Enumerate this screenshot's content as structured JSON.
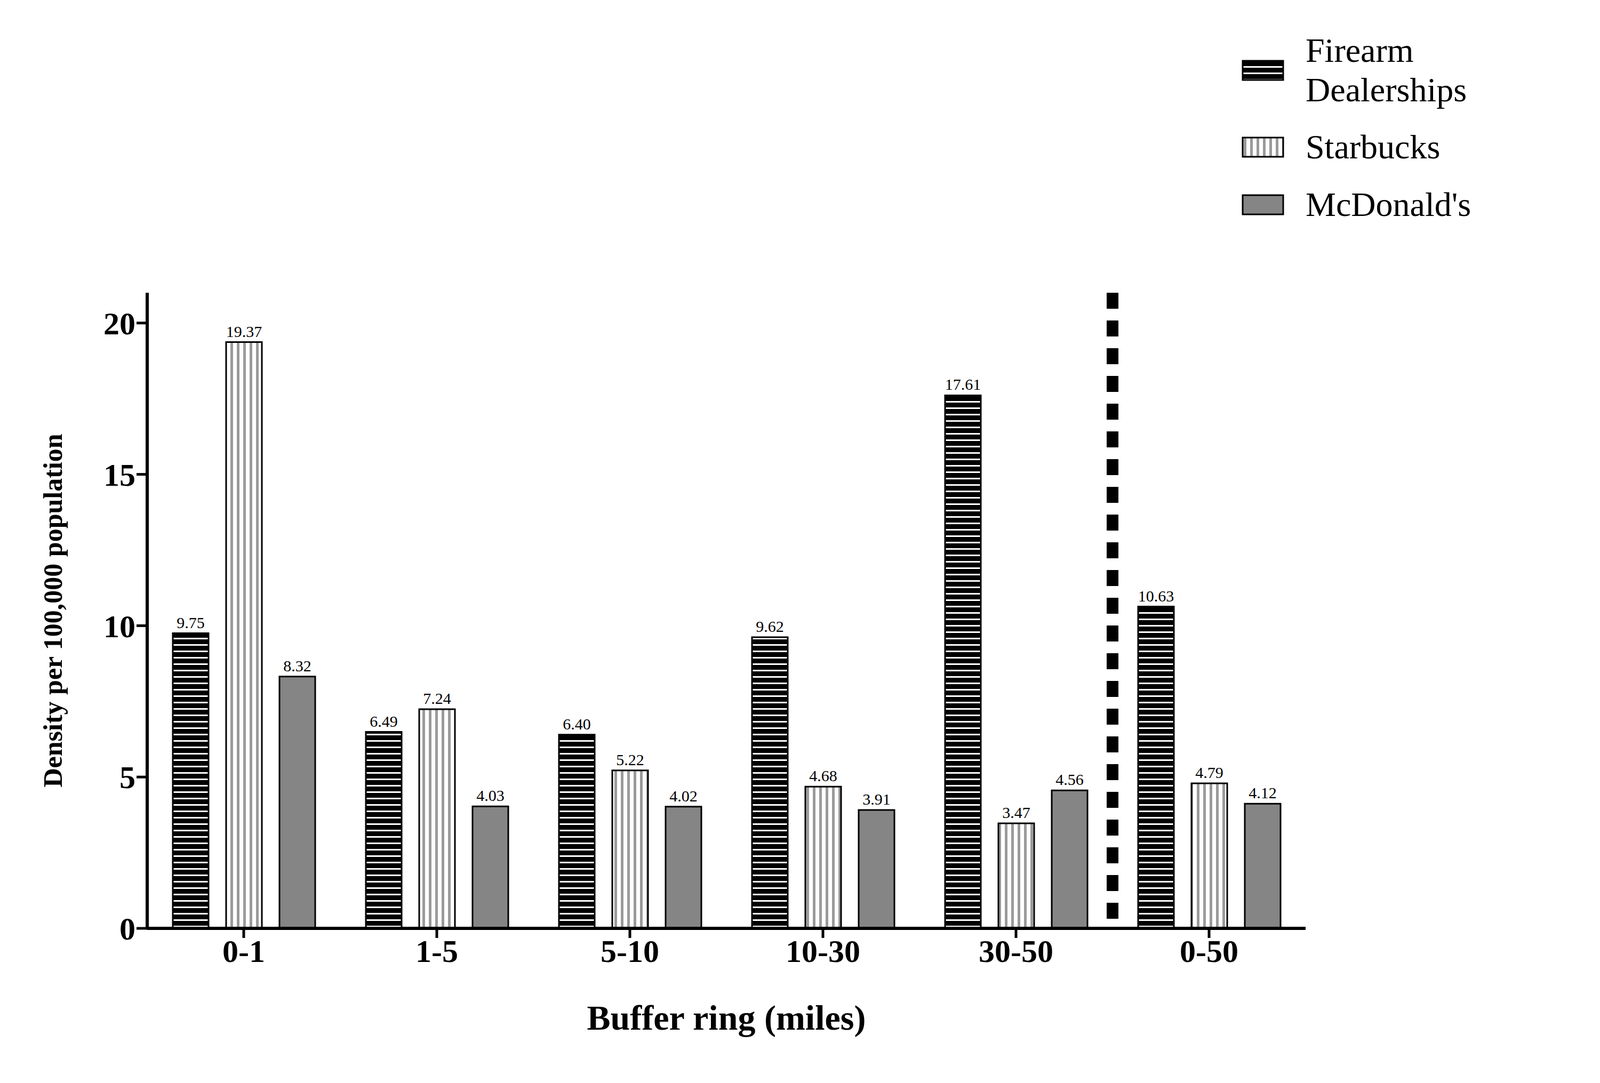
{
  "chart_data": {
    "type": "bar",
    "x_label": "Buffer ring (miles)",
    "y_label": "Density per 100,000 population",
    "categories": [
      "0-1",
      "1-5",
      "5-10",
      "10-30",
      "30-50",
      "0-50"
    ],
    "series": [
      {
        "name": "Firearm Dealerships",
        "color": "#000000",
        "values": [
          9.75,
          6.49,
          6.4,
          9.62,
          17.61,
          10.63
        ],
        "value_labels": [
          "9.75",
          "6.49",
          "6.40",
          "9.62",
          "17.61",
          "10.63"
        ]
      },
      {
        "name": "Starbucks",
        "color": "#9a9a9a",
        "values": [
          19.37,
          7.24,
          5.22,
          4.68,
          3.47,
          4.79
        ],
        "value_labels": [
          "19.37",
          "7.24",
          "5.22",
          "4.68",
          "3.47",
          "4.79"
        ]
      },
      {
        "name": "McDonald's",
        "color": "#858585",
        "values": [
          8.32,
          4.03,
          4.02,
          3.91,
          4.56,
          4.12
        ],
        "value_labels": [
          "8.32",
          "4.03",
          "4.02",
          "3.91",
          "4.56",
          "4.12"
        ]
      }
    ],
    "ylim": [
      0,
      21
    ],
    "yticks": [
      0,
      5,
      10,
      15,
      20
    ],
    "grid": false,
    "legend": "upper right",
    "data_labels": true
  }
}
